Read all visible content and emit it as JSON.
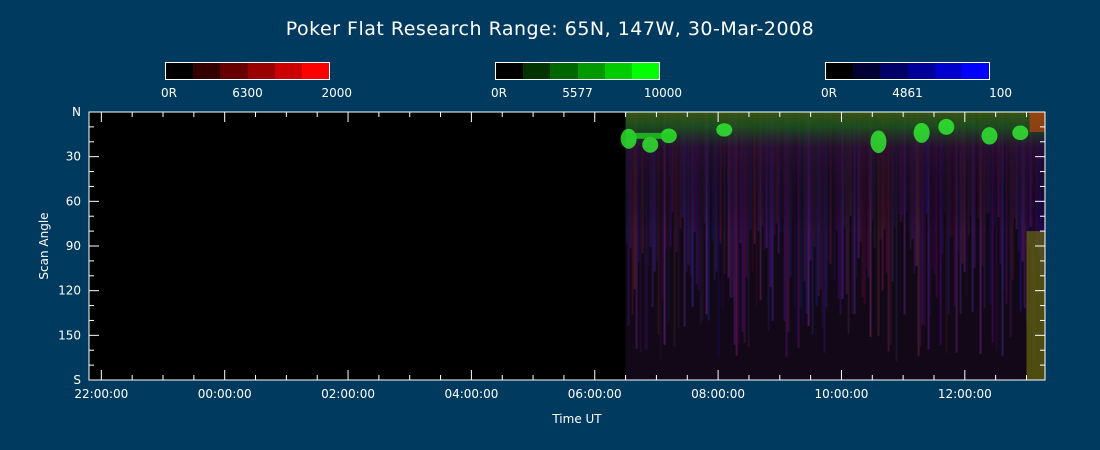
{
  "chart_data": {
    "type": "heatmap",
    "title": "Poker Flat Research Range: 65N, 147W, 30-Mar-2008",
    "xlabel": "Time UT",
    "ylabel": "Scan Angle",
    "x_tick_labels": [
      "22:00:00",
      "00:00:00",
      "02:00:00",
      "04:00:00",
      "06:00:00",
      "08:00:00",
      "10:00:00",
      "12:00:00"
    ],
    "y_tick_labels": [
      "N",
      "30",
      "60",
      "90",
      "120",
      "150",
      "S"
    ],
    "y_tick_values": [
      0,
      30,
      60,
      90,
      120,
      150,
      180
    ],
    "xlim_hours": [
      -2.2,
      13.3
    ],
    "ylim": [
      0,
      180
    ],
    "data_start_hours": 6.5,
    "colorbars": [
      {
        "name": "6300",
        "min_label": "0R",
        "max_label": "2000",
        "color": "#ff0000"
      },
      {
        "name": "5577",
        "min_label": "0R",
        "max_label": "10000",
        "color": "#00ff00"
      },
      {
        "name": "4861",
        "min_label": "0R",
        "max_label": "100",
        "color": "#0000ff"
      }
    ]
  }
}
